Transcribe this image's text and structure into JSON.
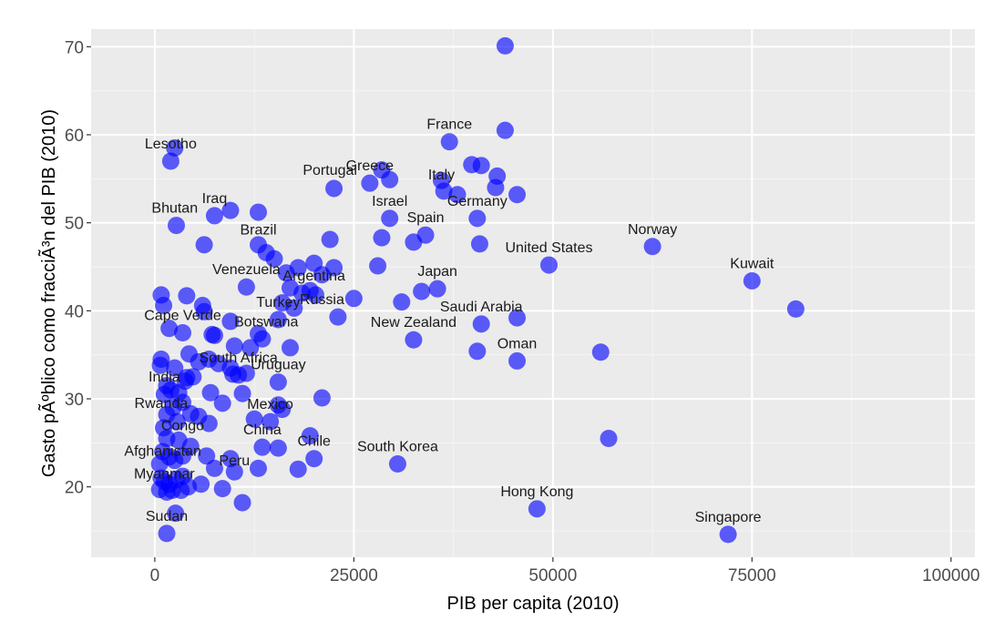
{
  "chart_data": {
    "type": "scatter",
    "xlabel": "PIB per capita (2010)",
    "ylabel": "Gasto pÃºblico como fracciÃ³n del PIB (2010)",
    "xlim": [
      -8000,
      103000
    ],
    "ylim": [
      12,
      72
    ],
    "x_ticks": [
      0,
      25000,
      50000,
      75000,
      100000
    ],
    "x_tick_labels": [
      "0",
      "25000",
      "50000",
      "75000",
      "100000"
    ],
    "y_ticks": [
      20,
      30,
      40,
      50,
      60,
      70
    ],
    "y_tick_labels": [
      "20",
      "30",
      "40",
      "50",
      "60",
      "70"
    ],
    "grid": true,
    "point_color": "#0000ff",
    "panel_background": "#ebebeb",
    "labeled_points": [
      {
        "label": "Lesotho",
        "x": 2000,
        "y": 57.0
      },
      {
        "label": "France",
        "x": 37000,
        "y": 59.2
      },
      {
        "label": "Greece",
        "x": 27000,
        "y": 54.5
      },
      {
        "label": "Portugal",
        "x": 22000,
        "y": 54.0
      },
      {
        "label": "Italy",
        "x": 36000,
        "y": 53.5
      },
      {
        "label": "Israel",
        "x": 29500,
        "y": 50.5
      },
      {
        "label": "Germany",
        "x": 40500,
        "y": 50.5
      },
      {
        "label": "Iraq",
        "x": 7500,
        "y": 50.8
      },
      {
        "label": "Bhutan",
        "x": 2500,
        "y": 49.7
      },
      {
        "label": "Spain",
        "x": 34000,
        "y": 48.6
      },
      {
        "label": "Brazil",
        "x": 13000,
        "y": 47.2
      },
      {
        "label": "United States",
        "x": 49500,
        "y": 45.2
      },
      {
        "label": "Norway",
        "x": 62500,
        "y": 47.3
      },
      {
        "label": "Kuwait",
        "x": 75000,
        "y": 43.4
      },
      {
        "label": "Argentina",
        "x": 20000,
        "y": 42.0
      },
      {
        "label": "Japan",
        "x": 35500,
        "y": 42.5
      },
      {
        "label": "Venezuela",
        "x": 11500,
        "y": 42.7
      },
      {
        "label": "Cape Verde",
        "x": 3500,
        "y": 37.5
      },
      {
        "label": "Turkey",
        "x": 15500,
        "y": 39.0
      },
      {
        "label": "Botswana",
        "x": 14000,
        "y": 36.8
      },
      {
        "label": "Russia",
        "x": 21000,
        "y": 39.3
      },
      {
        "label": "Saudi Arabia",
        "x": 41000,
        "y": 38.5
      },
      {
        "label": "New Zealand",
        "x": 32500,
        "y": 36.7
      },
      {
        "label": "Oman",
        "x": 45500,
        "y": 34.3
      },
      {
        "label": "South Africa",
        "x": 10500,
        "y": 32.7
      },
      {
        "label": "Uruguay",
        "x": 15500,
        "y": 31.9
      },
      {
        "label": "India",
        "x": 1200,
        "y": 30.5
      },
      {
        "label": "Rwanda",
        "x": 800,
        "y": 27.5
      },
      {
        "label": "Mexico",
        "x": 14500,
        "y": 27.4
      },
      {
        "label": "Congo",
        "x": 3500,
        "y": 25.0
      },
      {
        "label": "Chile",
        "x": 20000,
        "y": 23.2
      },
      {
        "label": "South Korea",
        "x": 30500,
        "y": 22.6
      },
      {
        "label": "Afghanistan",
        "x": 1000,
        "y": 22.1
      },
      {
        "label": "China",
        "x": 13500,
        "y": 24.5
      },
      {
        "label": "Peru",
        "x": 10000,
        "y": 21.0
      },
      {
        "label": "Myanmar",
        "x": 1200,
        "y": 19.5
      },
      {
        "label": "Hong Kong",
        "x": 48000,
        "y": 17.5
      },
      {
        "label": "Sudan",
        "x": 1500,
        "y": 14.7
      },
      {
        "label": "Singapore",
        "x": 72000,
        "y": 14.6
      }
    ],
    "points": [
      {
        "x": 2000,
        "y": 57.0
      },
      {
        "x": 2500,
        "y": 58.5
      },
      {
        "x": 37000,
        "y": 59.2
      },
      {
        "x": 44000,
        "y": 60.5
      },
      {
        "x": 44000,
        "y": 70.1
      },
      {
        "x": 27000,
        "y": 54.5
      },
      {
        "x": 28500,
        "y": 56.0
      },
      {
        "x": 29500,
        "y": 54.9
      },
      {
        "x": 22500,
        "y": 53.9
      },
      {
        "x": 36000,
        "y": 54.8
      },
      {
        "x": 36300,
        "y": 53.6
      },
      {
        "x": 38000,
        "y": 53.2
      },
      {
        "x": 39800,
        "y": 56.6
      },
      {
        "x": 41000,
        "y": 56.5
      },
      {
        "x": 43000,
        "y": 55.3
      },
      {
        "x": 42800,
        "y": 54.0
      },
      {
        "x": 45500,
        "y": 53.2
      },
      {
        "x": 29500,
        "y": 50.5
      },
      {
        "x": 40500,
        "y": 50.5
      },
      {
        "x": 7500,
        "y": 50.8
      },
      {
        "x": 9500,
        "y": 51.4
      },
      {
        "x": 13000,
        "y": 51.2
      },
      {
        "x": 2700,
        "y": 49.7
      },
      {
        "x": 6200,
        "y": 47.5
      },
      {
        "x": 28500,
        "y": 48.3
      },
      {
        "x": 32500,
        "y": 47.8
      },
      {
        "x": 34000,
        "y": 48.6
      },
      {
        "x": 40800,
        "y": 47.6
      },
      {
        "x": 22000,
        "y": 48.1
      },
      {
        "x": 13000,
        "y": 47.5
      },
      {
        "x": 14000,
        "y": 46.6
      },
      {
        "x": 15000,
        "y": 45.9
      },
      {
        "x": 16500,
        "y": 44.3
      },
      {
        "x": 18000,
        "y": 44.9
      },
      {
        "x": 20000,
        "y": 45.4
      },
      {
        "x": 21000,
        "y": 44.1
      },
      {
        "x": 22500,
        "y": 44.9
      },
      {
        "x": 28000,
        "y": 45.1
      },
      {
        "x": 49500,
        "y": 45.2
      },
      {
        "x": 62500,
        "y": 47.3
      },
      {
        "x": 75000,
        "y": 43.4
      },
      {
        "x": 80500,
        "y": 40.2
      },
      {
        "x": 17000,
        "y": 42.6
      },
      {
        "x": 18500,
        "y": 42.0
      },
      {
        "x": 19500,
        "y": 42.3
      },
      {
        "x": 20200,
        "y": 41.8
      },
      {
        "x": 25000,
        "y": 41.4
      },
      {
        "x": 31000,
        "y": 41.0
      },
      {
        "x": 33500,
        "y": 42.2
      },
      {
        "x": 35500,
        "y": 42.5
      },
      {
        "x": 11500,
        "y": 42.7
      },
      {
        "x": 16000,
        "y": 40.9
      },
      {
        "x": 17500,
        "y": 40.3
      },
      {
        "x": 800,
        "y": 41.8
      },
      {
        "x": 1100,
        "y": 40.6
      },
      {
        "x": 4000,
        "y": 41.7
      },
      {
        "x": 6000,
        "y": 40.6
      },
      {
        "x": 6200,
        "y": 39.9
      },
      {
        "x": 1800,
        "y": 38.0
      },
      {
        "x": 3500,
        "y": 37.5
      },
      {
        "x": 7200,
        "y": 37.3
      },
      {
        "x": 9500,
        "y": 38.8
      },
      {
        "x": 15500,
        "y": 39.0
      },
      {
        "x": 23000,
        "y": 39.3
      },
      {
        "x": 13000,
        "y": 37.4
      },
      {
        "x": 13500,
        "y": 36.8
      },
      {
        "x": 12000,
        "y": 35.8
      },
      {
        "x": 10000,
        "y": 36.0
      },
      {
        "x": 7500,
        "y": 37.2
      },
      {
        "x": 17000,
        "y": 35.8
      },
      {
        "x": 32500,
        "y": 36.7
      },
      {
        "x": 41000,
        "y": 38.5
      },
      {
        "x": 45500,
        "y": 39.2
      },
      {
        "x": 40500,
        "y": 35.4
      },
      {
        "x": 45500,
        "y": 34.3
      },
      {
        "x": 56000,
        "y": 35.3
      },
      {
        "x": 800,
        "y": 34.5
      },
      {
        "x": 700,
        "y": 33.8
      },
      {
        "x": 2500,
        "y": 33.5
      },
      {
        "x": 4300,
        "y": 35.1
      },
      {
        "x": 5500,
        "y": 34.2
      },
      {
        "x": 6800,
        "y": 34.5
      },
      {
        "x": 8000,
        "y": 34.0
      },
      {
        "x": 9500,
        "y": 33.5
      },
      {
        "x": 10500,
        "y": 32.7
      },
      {
        "x": 9800,
        "y": 32.8
      },
      {
        "x": 11500,
        "y": 32.9
      },
      {
        "x": 4000,
        "y": 32.4
      },
      {
        "x": 4800,
        "y": 32.5
      },
      {
        "x": 3800,
        "y": 32.0
      },
      {
        "x": 1500,
        "y": 31.5
      },
      {
        "x": 2000,
        "y": 31.0
      },
      {
        "x": 3000,
        "y": 30.7
      },
      {
        "x": 7000,
        "y": 30.7
      },
      {
        "x": 11000,
        "y": 30.6
      },
      {
        "x": 15500,
        "y": 31.9
      },
      {
        "x": 21000,
        "y": 30.1
      },
      {
        "x": 8500,
        "y": 29.5
      },
      {
        "x": 3500,
        "y": 29.6
      },
      {
        "x": 2300,
        "y": 29.0
      },
      {
        "x": 1200,
        "y": 30.5
      },
      {
        "x": 4500,
        "y": 28.3
      },
      {
        "x": 5500,
        "y": 28.0
      },
      {
        "x": 6800,
        "y": 27.2
      },
      {
        "x": 1500,
        "y": 28.2
      },
      {
        "x": 2800,
        "y": 27.4
      },
      {
        "x": 1100,
        "y": 26.7
      },
      {
        "x": 15500,
        "y": 29.3
      },
      {
        "x": 16000,
        "y": 28.8
      },
      {
        "x": 14500,
        "y": 27.4
      },
      {
        "x": 12500,
        "y": 27.7
      },
      {
        "x": 57000,
        "y": 25.5
      },
      {
        "x": 19500,
        "y": 25.8
      },
      {
        "x": 3000,
        "y": 25.3
      },
      {
        "x": 4500,
        "y": 24.6
      },
      {
        "x": 1500,
        "y": 25.5
      },
      {
        "x": 1000,
        "y": 24.0
      },
      {
        "x": 1800,
        "y": 23.4
      },
      {
        "x": 2500,
        "y": 23.0
      },
      {
        "x": 3500,
        "y": 23.5
      },
      {
        "x": 6500,
        "y": 23.5
      },
      {
        "x": 9500,
        "y": 23.2
      },
      {
        "x": 13500,
        "y": 24.5
      },
      {
        "x": 15500,
        "y": 24.4
      },
      {
        "x": 20000,
        "y": 23.2
      },
      {
        "x": 30500,
        "y": 22.6
      },
      {
        "x": 7500,
        "y": 22.1
      },
      {
        "x": 10000,
        "y": 21.7
      },
      {
        "x": 13000,
        "y": 22.1
      },
      {
        "x": 18000,
        "y": 22.0
      },
      {
        "x": 600,
        "y": 22.6
      },
      {
        "x": 800,
        "y": 21.0
      },
      {
        "x": 1200,
        "y": 20.6
      },
      {
        "x": 1800,
        "y": 20.3
      },
      {
        "x": 2700,
        "y": 20.8
      },
      {
        "x": 3500,
        "y": 21.2
      },
      {
        "x": 4200,
        "y": 20.0
      },
      {
        "x": 5800,
        "y": 20.3
      },
      {
        "x": 600,
        "y": 19.7
      },
      {
        "x": 1500,
        "y": 19.4
      },
      {
        "x": 2200,
        "y": 19.6
      },
      {
        "x": 3300,
        "y": 19.6
      },
      {
        "x": 8500,
        "y": 19.8
      },
      {
        "x": 11000,
        "y": 18.2
      },
      {
        "x": 2600,
        "y": 17.0
      },
      {
        "x": 48000,
        "y": 17.5
      },
      {
        "x": 1500,
        "y": 14.7
      },
      {
        "x": 72000,
        "y": 14.6
      }
    ]
  }
}
